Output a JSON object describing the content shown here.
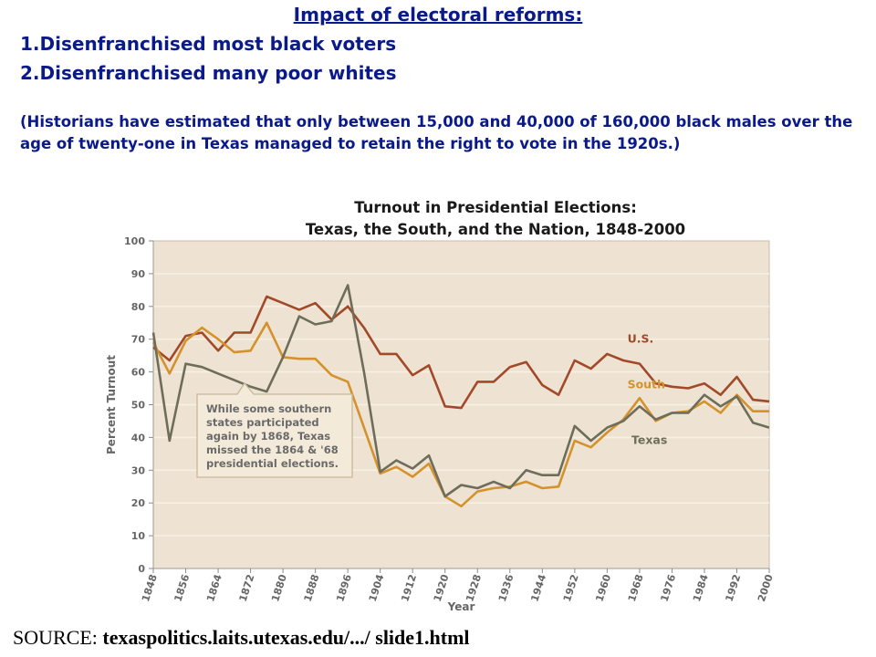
{
  "heading": "Impact of electoral reforms:",
  "items": [
    "1.Disenfranchised most black voters",
    "2.Disenfranchised many poor whites"
  ],
  "note": "(Historians have estimated that only between 15,000 and 40,000 of 160,000 black males over the age of twenty-one in Texas managed to retain the right to vote in the 1920s.)",
  "source": {
    "prefix": "SOURCE: ",
    "url": "texaspolitics.laits.utexas.edu/.../ slide1.html"
  },
  "colors": {
    "us": "#a2492a",
    "south": "#d4922e",
    "texas": "#6d6d5a",
    "plot_bg": "#eee3d2",
    "grid": "#f7f0e4",
    "text": "#0b1a8a"
  },
  "chart_data": {
    "type": "line",
    "title": "Turnout in Presidential Elections:",
    "subtitle": "Texas, the South, and the Nation, 1848-2000",
    "xlabel": "Year",
    "ylabel": "Percent Turnout",
    "xlim": [
      1848,
      2000
    ],
    "ylim": [
      0,
      100
    ],
    "grid": true,
    "x_ticks": [
      1848,
      1856,
      1864,
      1872,
      1880,
      1888,
      1896,
      1904,
      1912,
      1920,
      1928,
      1936,
      1944,
      1952,
      1960,
      1968,
      1976,
      1984,
      1992,
      2000
    ],
    "y_ticks": [
      0,
      10,
      20,
      30,
      40,
      50,
      60,
      70,
      80,
      90,
      100
    ],
    "x": [
      1848,
      1852,
      1856,
      1860,
      1864,
      1868,
      1872,
      1876,
      1880,
      1884,
      1888,
      1892,
      1896,
      1900,
      1904,
      1908,
      1912,
      1916,
      1920,
      1924,
      1928,
      1932,
      1936,
      1940,
      1944,
      1948,
      1952,
      1956,
      1960,
      1964,
      1968,
      1972,
      1976,
      1980,
      1984,
      1988,
      1992,
      1996,
      2000
    ],
    "series": [
      {
        "name": "U.S.",
        "values": [
          67.5,
          63.5,
          71,
          72,
          66.5,
          72,
          72,
          83,
          81,
          79,
          81,
          76,
          80,
          73.5,
          65.5,
          65.5,
          59,
          62,
          49.5,
          49,
          57,
          57,
          61.5,
          63,
          56,
          53,
          63.5,
          61,
          65.5,
          63.5,
          62.5,
          56.5,
          55.5,
          55,
          56.5,
          53,
          58.5,
          51.5,
          51
        ]
      },
      {
        "name": "South",
        "values": [
          69,
          59.5,
          69.5,
          73.5,
          70,
          66,
          66.5,
          75,
          64.5,
          64,
          64,
          59,
          57,
          43,
          29,
          31,
          28,
          32,
          22,
          19,
          23.5,
          24.5,
          25,
          26.5,
          24.5,
          25,
          39,
          37,
          41.5,
          45.5,
          52,
          45,
          47.5,
          48,
          51,
          47.5,
          53,
          48,
          48
        ]
      },
      {
        "name": "Texas",
        "values": [
          72,
          39,
          62.5,
          61.5,
          59.5,
          57.5,
          55.5,
          54,
          64.5,
          77,
          74.5,
          75.5,
          86.5,
          60,
          29.5,
          33,
          30.5,
          34.5,
          22,
          25.5,
          24.5,
          26.5,
          24.5,
          30,
          28.5,
          28.5,
          43.5,
          39,
          43,
          45,
          49.5,
          45.5,
          47.5,
          47.5,
          53,
          49.5,
          52.5,
          44.5,
          43
        ]
      }
    ],
    "annotations": [
      "While some southern",
      "states participated",
      "again by 1868, Texas",
      "missed the 1864 & '68",
      "presidential elections."
    ]
  }
}
